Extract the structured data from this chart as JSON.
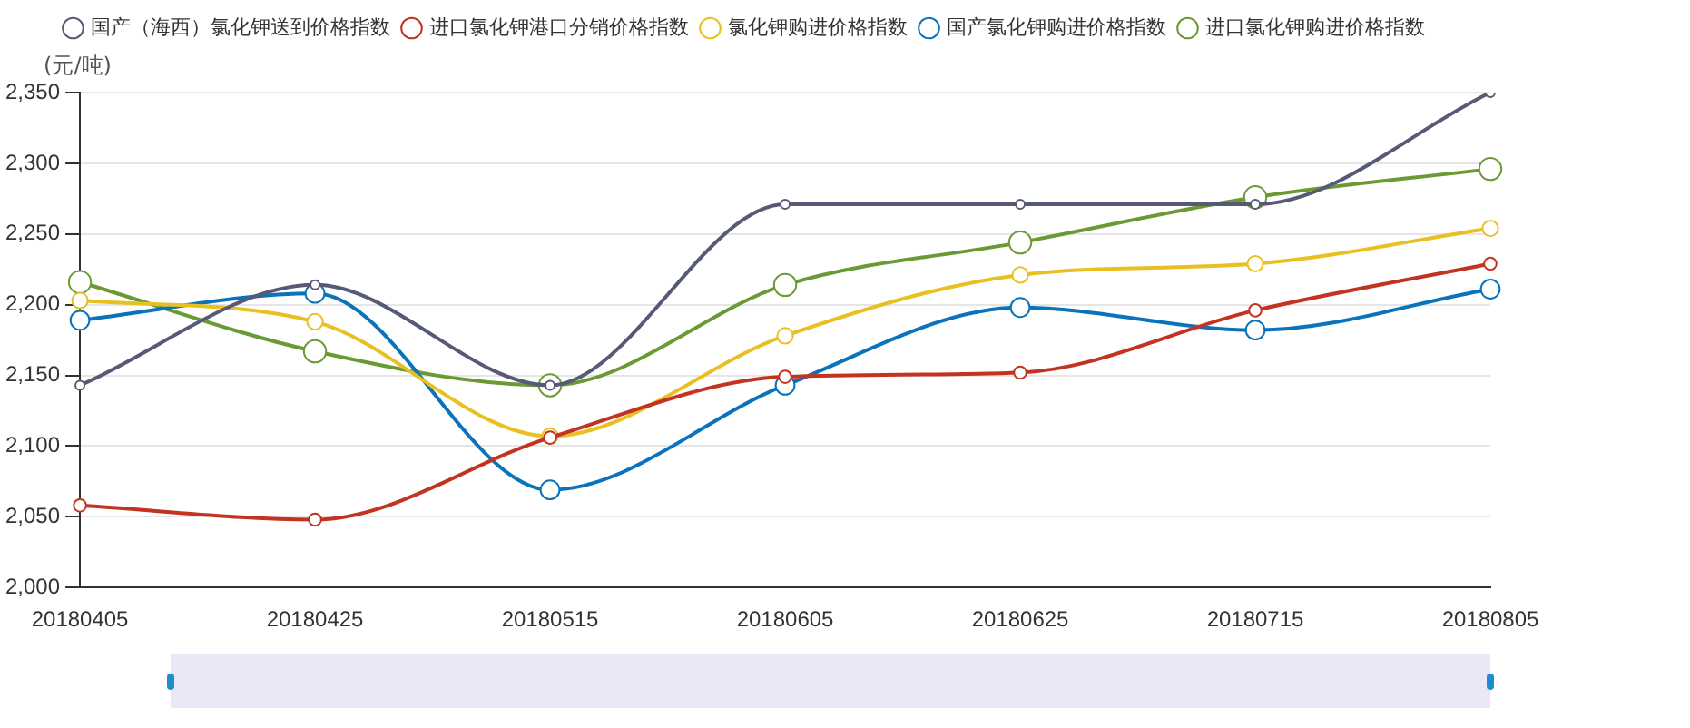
{
  "chart_data": {
    "type": "line",
    "ylabel": "(元/吨)",
    "categories": [
      "20180405",
      "20180425",
      "20180515",
      "20180605",
      "20180625",
      "20180715",
      "20180805"
    ],
    "series": [
      {
        "name": "国产（海西）氯化钾送到价格指数",
        "color": "#575a77",
        "values": [
          2143,
          2214,
          2143,
          2271,
          2271,
          2271,
          2350
        ]
      },
      {
        "name": "进口氯化钾港口分销价格指数",
        "color": "#c23321",
        "values": [
          2058,
          2048,
          2106,
          2149,
          2152,
          2196,
          2229
        ]
      },
      {
        "name": "氯化钾购进价格指数",
        "color": "#e9c021",
        "values": [
          2203,
          2188,
          2107,
          2178,
          2221,
          2229,
          2254
        ]
      },
      {
        "name": "国产氯化钾购进价格指数",
        "color": "#0a73bb",
        "values": [
          2189,
          2208,
          2069,
          2143,
          2198,
          2182,
          2211
        ]
      },
      {
        "name": "进口氯化钾购进价格指数",
        "color": "#6a9a33",
        "values": [
          2216,
          2167,
          2143,
          2214,
          2244,
          2276,
          2296
        ]
      }
    ],
    "ylim": [
      2000,
      2350
    ],
    "yticks": [
      {
        "value": 2000,
        "label": "2,000"
      },
      {
        "value": 2050,
        "label": "2,050"
      },
      {
        "value": 2100,
        "label": "2,100"
      },
      {
        "value": 2150,
        "label": "2,150"
      },
      {
        "value": 2200,
        "label": "2,200"
      },
      {
        "value": 2250,
        "label": "2,250"
      },
      {
        "value": 2300,
        "label": "2,300"
      },
      {
        "value": 2350,
        "label": "2,350"
      }
    ],
    "grid": "y",
    "legend": "top",
    "marker": "circle",
    "line_style": "solid"
  }
}
